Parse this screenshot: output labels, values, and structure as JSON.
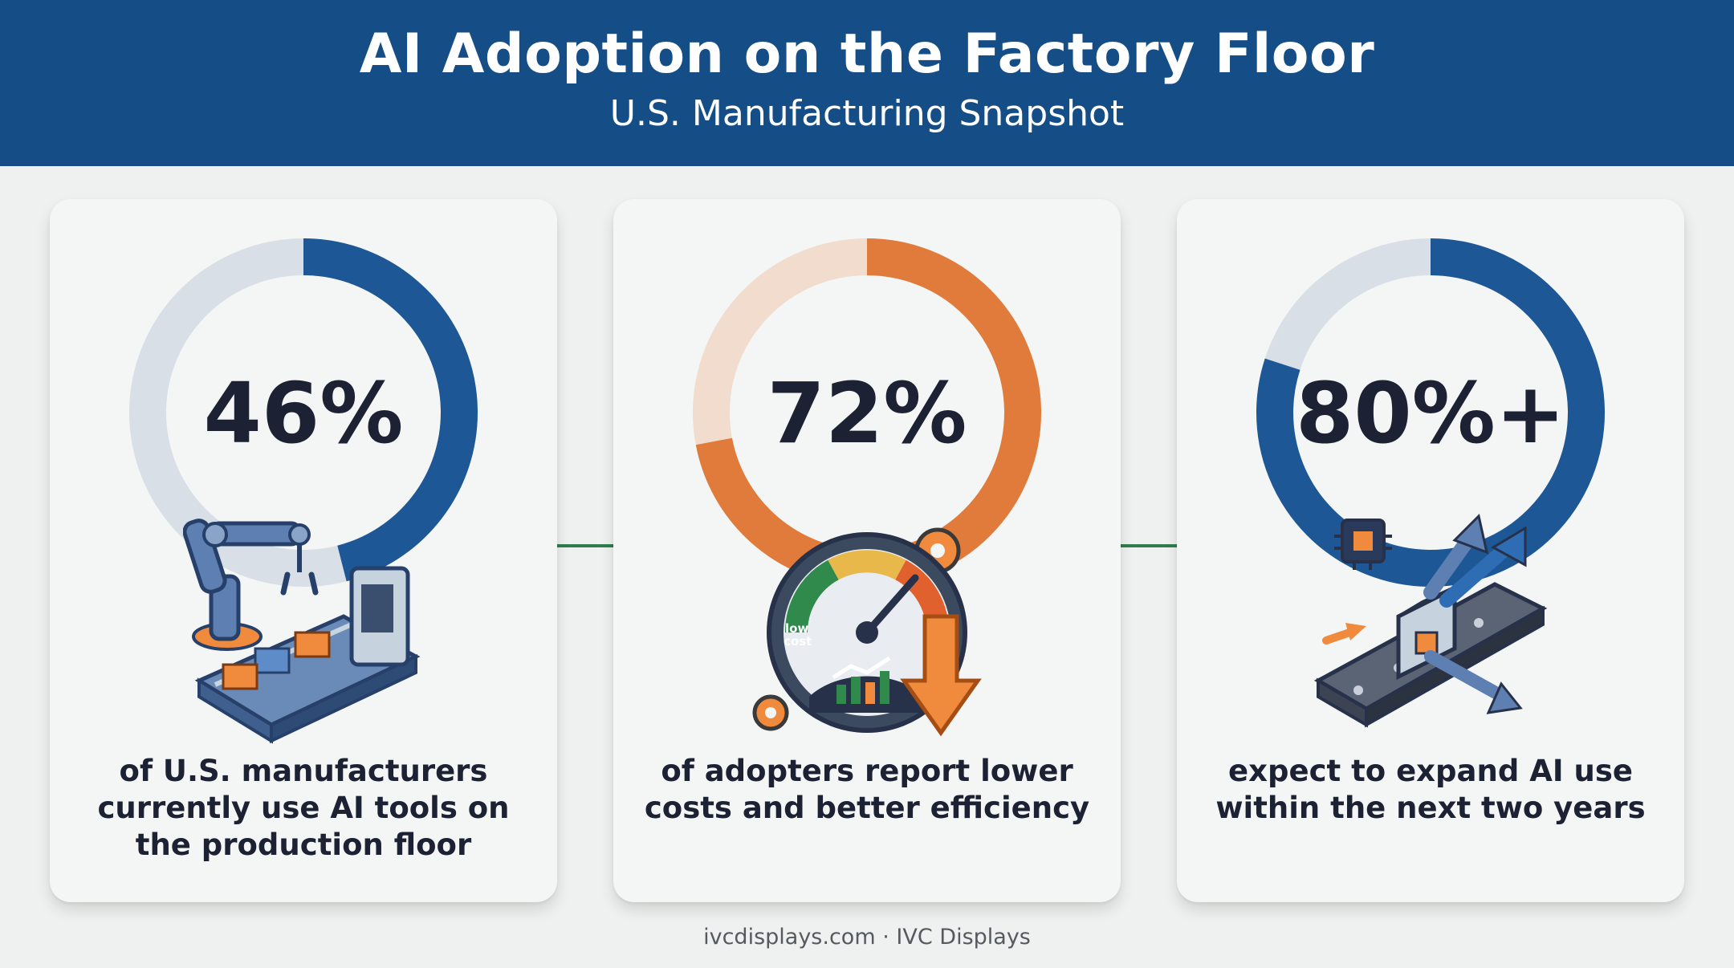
{
  "header": {
    "title": "AI Adoption on the Factory Floor",
    "subtitle": "U.S. Manufacturing Snapshot"
  },
  "stats": [
    {
      "value_label": "46%",
      "caption_lines": [
        "of U.S. manufacturers",
        "currently use AI tools on",
        "the production floor"
      ],
      "fraction": 0.46,
      "color": "#1d5795",
      "track_color": "#d8dfe6",
      "icon": "robotic-arm-assembly-line-icon"
    },
    {
      "value_label": "72%",
      "caption_lines": [
        "of adopters report lower",
        "costs and better efficiency"
      ],
      "fraction": 0.72,
      "color": "#e07b3c",
      "track_color": "#f2dccd",
      "icon": "cost-gauge-icon",
      "gauge_label_1": "low",
      "gauge_label_2": "cost"
    },
    {
      "value_label": "80%+",
      "caption_lines": [
        "expect to expand AI use",
        "within the next two years"
      ],
      "fraction": 0.8,
      "color": "#1d5795",
      "track_color": "#d8dfe6",
      "icon": "ai-chip-conveyor-growth-icon"
    }
  ],
  "footer": {
    "site": "ivcdisplays.com",
    "separator": "·",
    "brand": "IVC Displays"
  },
  "colors": {
    "header_bg": "#154e86",
    "connector": "#2f7d4b",
    "page_bg": "#eef1ef"
  }
}
